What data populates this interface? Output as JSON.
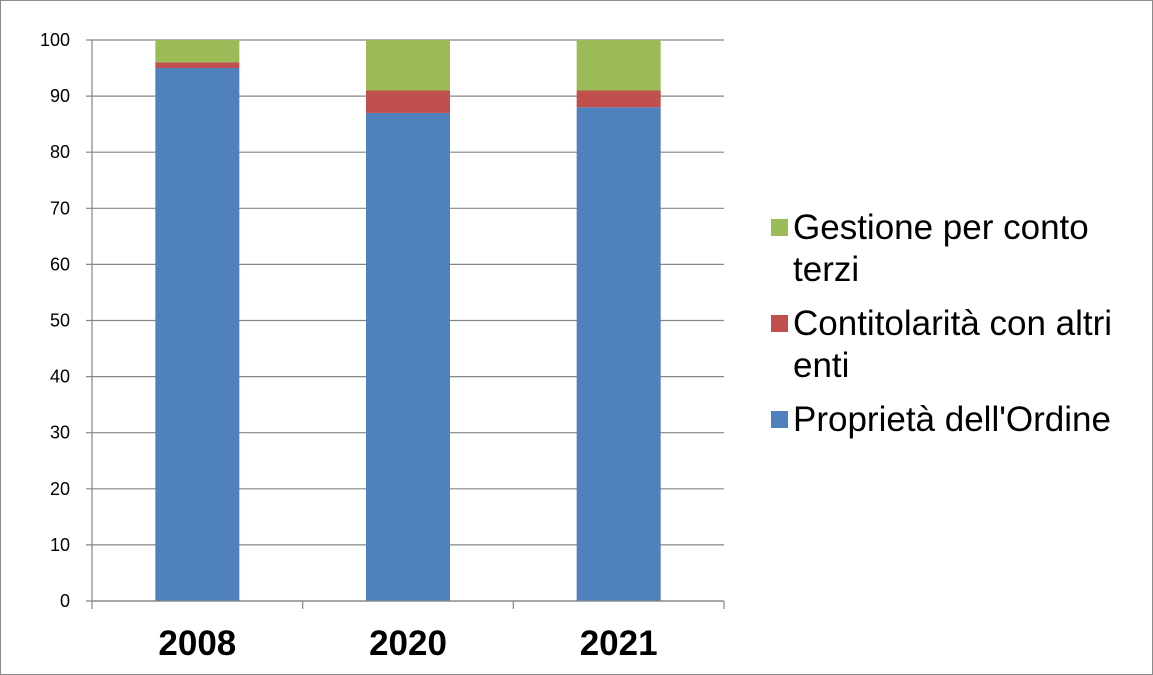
{
  "chart_data": {
    "type": "bar",
    "stacked": true,
    "categories": [
      "2008",
      "2020",
      "2021"
    ],
    "series": [
      {
        "name": "Proprietà dell'Ordine",
        "color": "#4f81bd",
        "values": [
          95,
          87,
          88
        ]
      },
      {
        "name": "Contitolarità con altri enti",
        "color": "#c0504d",
        "values": [
          1,
          4,
          3
        ]
      },
      {
        "name": "Gestione per conto terzi",
        "color": "#9bbb59",
        "values": [
          4,
          9,
          9
        ]
      }
    ],
    "legend_order": [
      2,
      1,
      0
    ],
    "ylim": [
      0,
      100
    ],
    "yticks": [
      0,
      10,
      20,
      30,
      40,
      50,
      60,
      70,
      80,
      90,
      100
    ],
    "grid": true,
    "legend_position": "right",
    "title": "",
    "xlabel": "",
    "ylabel": ""
  }
}
